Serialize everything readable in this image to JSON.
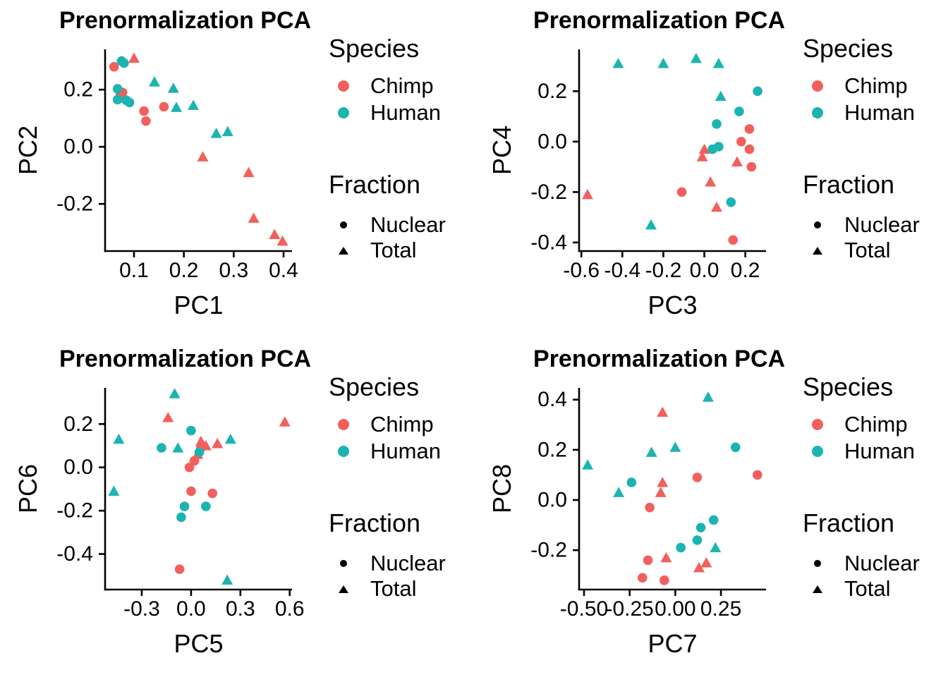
{
  "colors": {
    "chimp": "#F1605D",
    "human": "#1CB4B0",
    "axis": "#000000",
    "marker": "#000000",
    "background": "#FFFFFF"
  },
  "legend": {
    "species_title": "Species",
    "species_items": [
      {
        "label": "Chimp",
        "color": "chimp"
      },
      {
        "label": "Human",
        "color": "human"
      }
    ],
    "fraction_title": "Fraction",
    "fraction_items": [
      {
        "label": "Nuclear",
        "shape": "circle"
      },
      {
        "label": "Total",
        "shape": "triangle"
      }
    ]
  },
  "chart_data": [
    {
      "type": "scatter",
      "title": "Prenormalization PCA",
      "xlabel": "PC1",
      "ylabel": "PC2",
      "xlim": [
        0.042,
        0.417
      ],
      "ylim": [
        -0.365,
        0.341
      ],
      "xticks": {
        "values": [
          0.1,
          0.2,
          0.3,
          0.4
        ],
        "labels": [
          "0.1",
          "0.2",
          "0.3",
          "0.4"
        ]
      },
      "yticks": {
        "values": [
          0.2,
          0.0,
          -0.2
        ],
        "labels": [
          "0.2",
          "0.0",
          "-0.2"
        ]
      },
      "grid": false,
      "legend_position": "right",
      "series": [
        {
          "species": "Chimp",
          "fraction": "Nuclear",
          "points": [
            [
              0.06,
              0.28
            ],
            [
              0.073,
              0.185
            ],
            [
              0.077,
              0.19
            ],
            [
              0.12,
              0.125
            ],
            [
              0.16,
              0.14
            ],
            [
              0.124,
              0.09
            ]
          ]
        },
        {
          "species": "Chimp",
          "fraction": "Total",
          "points": [
            [
              0.1,
              0.31
            ],
            [
              0.238,
              -0.035
            ],
            [
              0.33,
              -0.09
            ],
            [
              0.34,
              -0.25
            ],
            [
              0.382,
              -0.307
            ],
            [
              0.398,
              -0.33
            ]
          ]
        },
        {
          "species": "Human",
          "fraction": "Nuclear",
          "points": [
            [
              0.075,
              0.3
            ],
            [
              0.08,
              0.293
            ],
            [
              0.067,
              0.203
            ],
            [
              0.067,
              0.165
            ],
            [
              0.084,
              0.163
            ],
            [
              0.091,
              0.155
            ]
          ]
        },
        {
          "species": "Human",
          "fraction": "Total",
          "points": [
            [
              0.141,
              0.227
            ],
            [
              0.179,
              0.205
            ],
            [
              0.185,
              0.138
            ],
            [
              0.219,
              0.145
            ],
            [
              0.265,
              0.047
            ],
            [
              0.288,
              0.053
            ]
          ]
        }
      ]
    },
    {
      "type": "scatter",
      "title": "Prenormalization PCA",
      "xlabel": "PC3",
      "ylabel": "PC4",
      "xlim": [
        -0.611,
        0.301
      ],
      "ylim": [
        -0.434,
        0.366
      ],
      "xticks": {
        "values": [
          -0.6,
          -0.4,
          -0.2,
          0.0,
          0.2
        ],
        "labels": [
          "-0.6",
          "-0.4",
          "-0.2",
          "0.0",
          "0.2"
        ]
      },
      "yticks": {
        "values": [
          0.2,
          0.0,
          -0.2,
          -0.4
        ],
        "labels": [
          "0.2",
          "0.0",
          "-0.2",
          "-0.4"
        ]
      },
      "grid": false,
      "legend_position": "right",
      "series": [
        {
          "species": "Chimp",
          "fraction": "Nuclear",
          "points": [
            [
              0.22,
              0.05
            ],
            [
              0.18,
              0.0
            ],
            [
              0.22,
              -0.03
            ],
            [
              0.23,
              -0.1
            ],
            [
              -0.11,
              -0.2
            ],
            [
              0.14,
              -0.39
            ]
          ]
        },
        {
          "species": "Chimp",
          "fraction": "Total",
          "points": [
            [
              0.0,
              -0.03
            ],
            [
              -0.01,
              -0.06
            ],
            [
              0.16,
              -0.08
            ],
            [
              0.03,
              -0.16
            ],
            [
              -0.57,
              -0.21
            ],
            [
              0.06,
              -0.26
            ]
          ]
        },
        {
          "species": "Human",
          "fraction": "Nuclear",
          "points": [
            [
              0.26,
              0.2
            ],
            [
              0.17,
              0.12
            ],
            [
              0.06,
              0.07
            ],
            [
              0.07,
              -0.02
            ],
            [
              0.04,
              -0.03
            ],
            [
              0.13,
              -0.24
            ]
          ]
        },
        {
          "species": "Human",
          "fraction": "Total",
          "points": [
            [
              -0.42,
              0.31
            ],
            [
              -0.2,
              0.31
            ],
            [
              -0.04,
              0.33
            ],
            [
              0.07,
              0.31
            ],
            [
              0.08,
              0.18
            ],
            [
              -0.26,
              -0.33
            ]
          ]
        }
      ]
    },
    {
      "type": "scatter",
      "title": "Prenormalization PCA",
      "xlabel": "PC5",
      "ylabel": "PC6",
      "xlim": [
        -0.523,
        0.614
      ],
      "ylim": [
        -0.564,
        0.367
      ],
      "xticks": {
        "values": [
          -0.3,
          0.0,
          0.3,
          0.6
        ],
        "labels": [
          "-0.3",
          "0.0",
          "0.3",
          "0.6"
        ]
      },
      "yticks": {
        "values": [
          0.2,
          0.0,
          -0.2,
          -0.4
        ],
        "labels": [
          "0.2",
          "0.0",
          "-0.2",
          "-0.4"
        ]
      },
      "grid": false,
      "legend_position": "right",
      "series": [
        {
          "species": "Chimp",
          "fraction": "Nuclear",
          "points": [
            [
              0.06,
              0.09
            ],
            [
              0.02,
              0.03
            ],
            [
              -0.01,
              0.0
            ],
            [
              0.0,
              -0.11
            ],
            [
              0.13,
              -0.12
            ],
            [
              -0.07,
              -0.47
            ]
          ]
        },
        {
          "species": "Chimp",
          "fraction": "Total",
          "points": [
            [
              -0.14,
              0.23
            ],
            [
              0.57,
              0.21
            ],
            [
              0.06,
              0.12
            ],
            [
              0.16,
              0.11
            ],
            [
              0.09,
              0.1
            ],
            [
              0.04,
              0.06
            ]
          ]
        },
        {
          "species": "Human",
          "fraction": "Nuclear",
          "points": [
            [
              0.0,
              0.17
            ],
            [
              -0.18,
              0.09
            ],
            [
              0.05,
              0.07
            ],
            [
              -0.04,
              -0.18
            ],
            [
              0.09,
              -0.18
            ],
            [
              -0.06,
              -0.23
            ]
          ]
        },
        {
          "species": "Human",
          "fraction": "Total",
          "points": [
            [
              -0.1,
              0.34
            ],
            [
              -0.44,
              0.13
            ],
            [
              0.24,
              0.13
            ],
            [
              -0.08,
              0.09
            ],
            [
              -0.47,
              -0.11
            ],
            [
              0.22,
              -0.52
            ]
          ]
        }
      ]
    },
    {
      "type": "scatter",
      "title": "Prenormalization PCA",
      "xlabel": "PC7",
      "ylabel": "PC8",
      "xlim": [
        -0.527,
        0.497
      ],
      "ylim": [
        -0.357,
        0.447
      ],
      "xticks": {
        "values": [
          -0.5,
          -0.25,
          0.0,
          0.25
        ],
        "labels": [
          "-0.50",
          "-0.25",
          "0.00",
          "0.25"
        ]
      },
      "yticks": {
        "values": [
          0.4,
          0.2,
          0.0,
          -0.2
        ],
        "labels": [
          "0.4",
          "0.2",
          "0.0",
          "-0.2"
        ]
      },
      "grid": false,
      "legend_position": "right",
      "series": [
        {
          "species": "Chimp",
          "fraction": "Nuclear",
          "points": [
            [
              0.45,
              0.1
            ],
            [
              0.12,
              0.09
            ],
            [
              -0.14,
              -0.03
            ],
            [
              -0.15,
              -0.24
            ],
            [
              -0.18,
              -0.31
            ],
            [
              -0.06,
              -0.32
            ]
          ]
        },
        {
          "species": "Chimp",
          "fraction": "Total",
          "points": [
            [
              -0.07,
              0.35
            ],
            [
              -0.07,
              0.07
            ],
            [
              -0.08,
              0.03
            ],
            [
              -0.05,
              -0.23
            ],
            [
              0.17,
              -0.25
            ],
            [
              0.13,
              -0.27
            ]
          ]
        },
        {
          "species": "Human",
          "fraction": "Nuclear",
          "points": [
            [
              0.33,
              0.21
            ],
            [
              -0.24,
              0.07
            ],
            [
              0.21,
              -0.08
            ],
            [
              0.14,
              -0.11
            ],
            [
              0.12,
              -0.16
            ],
            [
              0.03,
              -0.19
            ]
          ]
        },
        {
          "species": "Human",
          "fraction": "Total",
          "points": [
            [
              0.18,
              0.41
            ],
            [
              0.0,
              0.21
            ],
            [
              -0.13,
              0.19
            ],
            [
              -0.48,
              0.14
            ],
            [
              -0.31,
              0.03
            ],
            [
              0.22,
              -0.19
            ]
          ]
        }
      ]
    }
  ]
}
